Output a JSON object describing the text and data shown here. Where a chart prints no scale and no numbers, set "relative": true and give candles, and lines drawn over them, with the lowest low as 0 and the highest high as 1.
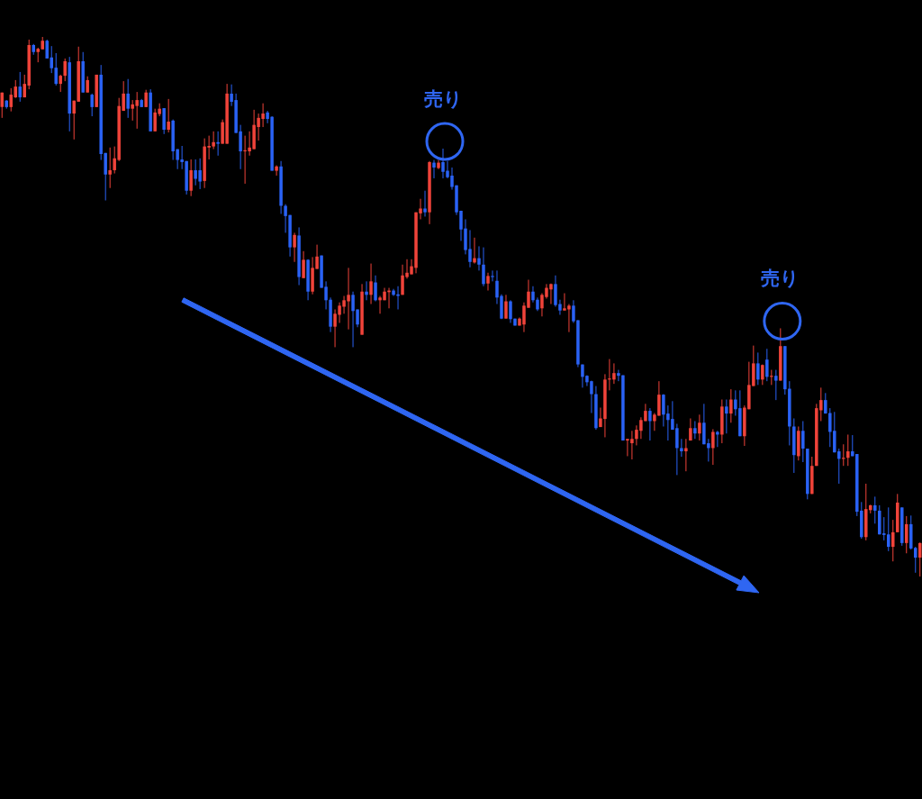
{
  "chart_data": {
    "type": "candlestick",
    "relative": true,
    "categories": [
      null,
      null,
      null,
      null,
      null,
      null,
      null,
      null,
      null,
      null,
      null,
      null,
      null,
      null,
      null,
      null,
      null,
      null,
      null,
      null,
      null,
      null,
      null,
      null,
      null,
      null,
      null,
      null,
      null,
      null,
      null,
      null,
      null,
      null,
      null,
      null,
      null,
      null,
      null,
      null,
      null,
      null,
      null,
      null,
      null,
      null,
      null,
      null,
      null,
      null,
      null,
      null,
      null,
      null,
      null,
      null,
      null,
      null,
      null,
      null,
      null,
      null,
      null,
      null,
      null,
      null,
      null,
      null,
      null,
      null,
      null,
      null,
      null,
      null,
      null,
      null,
      null,
      null,
      null,
      null,
      null,
      null,
      null,
      null,
      null,
      null,
      null,
      null,
      null,
      null,
      null,
      null,
      null,
      null,
      null,
      null,
      null,
      null,
      null,
      null,
      null,
      null,
      null,
      null,
      null,
      null,
      null,
      null,
      null,
      null,
      null,
      null,
      null,
      null,
      null,
      null,
      null,
      null,
      null,
      null,
      null,
      null,
      null,
      null,
      null,
      null,
      null,
      null,
      null,
      null,
      null,
      null,
      null,
      null,
      null,
      null,
      null,
      null,
      null,
      null,
      null,
      null,
      null,
      null,
      null,
      null,
      null,
      null,
      null,
      null,
      null,
      null,
      null,
      null,
      null,
      null,
      null,
      null,
      null,
      null,
      null,
      null,
      null,
      null,
      null,
      null,
      null,
      null,
      null,
      null,
      null,
      null,
      null,
      null,
      null,
      null,
      null,
      null,
      null,
      null,
      null,
      null,
      null,
      null,
      null,
      null,
      null,
      null,
      null,
      null,
      null,
      null,
      null,
      null,
      null,
      null,
      null,
      null,
      null,
      null,
      null,
      null,
      null,
      null,
      null
    ],
    "ohlc": [
      [
        0.87,
        0.897,
        0.85,
        0.897
      ],
      [
        0.882,
        0.883,
        0.867,
        0.87
      ],
      [
        0.87,
        0.905,
        0.862,
        0.893
      ],
      [
        0.888,
        0.92,
        0.887,
        0.908
      ],
      [
        0.908,
        0.935,
        0.88,
        0.888
      ],
      [
        0.888,
        0.93,
        0.888,
        0.913
      ],
      [
        0.91,
        0.995,
        0.903,
        0.985
      ],
      [
        0.985,
        0.987,
        0.967,
        0.972
      ],
      [
        0.972,
        0.98,
        0.953,
        0.978
      ],
      [
        0.977,
        1,
        0.977,
        0.993
      ],
      [
        0.993,
        0.995,
        0.96,
        0.96
      ],
      [
        0.962,
        0.983,
        0.933,
        0.942
      ],
      [
        0.943,
        0.97,
        0.91,
        0.913
      ],
      [
        0.913,
        0.93,
        0.898,
        0.928
      ],
      [
        0.928,
        0.96,
        0.918,
        0.955
      ],
      [
        0.953,
        0.963,
        0.825,
        0.858
      ],
      [
        0.858,
        0.882,
        0.81,
        0.882
      ],
      [
        0.88,
        0.982,
        0.88,
        0.955
      ],
      [
        0.955,
        0.972,
        0.897,
        0.897
      ],
      [
        0.897,
        0.927,
        0.897,
        0.92
      ],
      [
        0.893,
        0.895,
        0.853,
        0.87
      ],
      [
        0.87,
        0.93,
        0.87,
        0.93
      ],
      [
        0.93,
        0.948,
        0.772,
        0.783
      ],
      [
        0.785,
        0.785,
        0.697,
        0.745
      ],
      [
        0.745,
        0.795,
        0.72,
        0.753
      ],
      [
        0.753,
        0.797,
        0.747,
        0.775
      ],
      [
        0.772,
        0.887,
        0.77,
        0.872
      ],
      [
        0.863,
        0.918,
        0.863,
        0.895
      ],
      [
        0.895,
        0.922,
        0.85,
        0.867
      ],
      [
        0.867,
        0.883,
        0.845,
        0.875
      ],
      [
        0.872,
        0.898,
        0.83,
        0.883
      ],
      [
        0.883,
        0.885,
        0.87,
        0.87
      ],
      [
        0.87,
        0.902,
        0.87,
        0.897
      ],
      [
        0.897,
        0.903,
        0.825,
        0.825
      ],
      [
        0.825,
        0.867,
        0.825,
        0.86
      ],
      [
        0.857,
        0.877,
        0.853,
        0.867
      ],
      [
        0.868,
        0.868,
        0.82,
        0.828
      ],
      [
        0.828,
        0.885,
        0.823,
        0.843
      ],
      [
        0.845,
        0.847,
        0.772,
        0.788
      ],
      [
        0.792,
        0.792,
        0.755,
        0.772
      ],
      [
        0.773,
        0.798,
        0.755,
        0.768
      ],
      [
        0.77,
        0.77,
        0.708,
        0.715
      ],
      [
        0.715,
        0.773,
        0.705,
        0.753
      ],
      [
        0.753,
        0.773,
        0.725,
        0.737
      ],
      [
        0.753,
        0.775,
        0.718,
        0.732
      ],
      [
        0.733,
        0.812,
        0.72,
        0.797
      ],
      [
        0.795,
        0.817,
        0.773,
        0.798
      ],
      [
        0.797,
        0.825,
        0.792,
        0.805
      ],
      [
        0.805,
        0.825,
        0.78,
        0.802
      ],
      [
        0.802,
        0.847,
        0.802,
        0.842
      ],
      [
        0.802,
        0.913,
        0.802,
        0.895
      ],
      [
        0.895,
        0.912,
        0.872,
        0.88
      ],
      [
        0.883,
        0.895,
        0.822,
        0.822
      ],
      [
        0.825,
        0.837,
        0.755,
        0.788
      ],
      [
        0.788,
        0.817,
        0.728,
        0.79
      ],
      [
        0.788,
        0.825,
        0.78,
        0.795
      ],
      [
        0.792,
        0.865,
        0.792,
        0.837
      ],
      [
        0.833,
        0.858,
        0.808,
        0.85
      ],
      [
        0.848,
        0.877,
        0.833,
        0.858
      ],
      [
        0.86,
        0.863,
        0.84,
        0.848
      ],
      [
        0.852,
        0.853,
        0.752,
        0.752
      ],
      [
        0.752,
        0.762,
        0.743,
        0.76
      ],
      [
        0.76,
        0.77,
        0.672,
        0.687
      ],
      [
        0.687,
        0.69,
        0.637,
        0.668
      ],
      [
        0.67,
        0.67,
        0.593,
        0.61
      ],
      [
        0.61,
        0.637,
        0.583,
        0.633
      ],
      [
        0.632,
        0.647,
        0.54,
        0.555
      ],
      [
        0.553,
        0.603,
        0.553,
        0.587
      ],
      [
        0.587,
        0.588,
        0.512,
        0.528
      ],
      [
        0.528,
        0.592,
        0.523,
        0.572
      ],
      [
        0.57,
        0.615,
        0.57,
        0.593
      ],
      [
        0.595,
        0.595,
        0.535,
        0.535
      ],
      [
        0.537,
        0.547,
        0.495,
        0.512
      ],
      [
        0.513,
        0.517,
        0.453,
        0.463
      ],
      [
        0.463,
        0.495,
        0.425,
        0.487
      ],
      [
        0.485,
        0.508,
        0.47,
        0.502
      ],
      [
        0.5,
        0.52,
        0.487,
        0.512
      ],
      [
        0.51,
        0.572,
        0.458,
        0.522
      ],
      [
        0.522,
        0.528,
        0.425,
        0.492
      ],
      [
        0.495,
        0.495,
        0.462,
        0.467
      ],
      [
        0.448,
        0.542,
        0.448,
        0.528
      ],
      [
        0.528,
        0.547,
        0.512,
        0.522
      ],
      [
        0.522,
        0.58,
        0.505,
        0.547
      ],
      [
        0.545,
        0.558,
        0.51,
        0.512
      ],
      [
        0.512,
        0.52,
        0.487,
        0.517
      ],
      [
        0.512,
        0.535,
        0.512,
        0.528
      ],
      [
        0.527,
        0.535,
        0.497,
        0.53
      ],
      [
        0.53,
        0.533,
        0.52,
        0.522
      ],
      [
        0.523,
        0.538,
        0.495,
        0.52
      ],
      [
        0.522,
        0.578,
        0.522,
        0.558
      ],
      [
        0.555,
        0.588,
        0.552,
        0.563
      ],
      [
        0.56,
        0.588,
        0.56,
        0.575
      ],
      [
        0.572,
        0.675,
        0.562,
        0.675
      ],
      [
        0.673,
        0.7,
        0.662,
        0.682
      ],
      [
        0.682,
        0.715,
        0.667,
        0.675
      ],
      [
        0.675,
        0.77,
        0.653,
        0.768
      ],
      [
        0.767,
        0.772,
        0.738,
        0.758
      ],
      [
        0.757,
        0.772,
        0.755,
        0.767
      ],
      [
        0.768,
        0.793,
        0.738,
        0.75
      ],
      [
        0.752,
        0.77,
        0.738,
        0.74
      ],
      [
        0.743,
        0.758,
        0.717,
        0.722
      ],
      [
        0.725,
        0.725,
        0.67,
        0.675
      ],
      [
        0.678,
        0.678,
        0.622,
        0.643
      ],
      [
        0.645,
        0.662,
        0.597,
        0.605
      ],
      [
        0.607,
        0.642,
        0.573,
        0.583
      ],
      [
        0.582,
        0.628,
        0.58,
        0.59
      ],
      [
        0.59,
        0.612,
        0.567,
        0.578
      ],
      [
        0.578,
        0.61,
        0.538,
        0.542
      ],
      [
        0.543,
        0.563,
        0.53,
        0.557
      ],
      [
        0.557,
        0.567,
        0.547,
        0.555
      ],
      [
        0.548,
        0.567,
        0.505,
        0.517
      ],
      [
        0.52,
        0.523,
        0.477,
        0.478
      ],
      [
        0.478,
        0.522,
        0.478,
        0.51
      ],
      [
        0.51,
        0.512,
        0.47,
        0.477
      ],
      [
        0.478,
        0.478,
        0.465,
        0.465
      ],
      [
        0.465,
        0.48,
        0.465,
        0.478
      ],
      [
        0.467,
        0.508,
        0.453,
        0.502
      ],
      [
        0.498,
        0.55,
        0.498,
        0.528
      ],
      [
        0.528,
        0.538,
        0.508,
        0.512
      ],
      [
        0.513,
        0.517,
        0.492,
        0.495
      ],
      [
        0.497,
        0.525,
        0.482,
        0.522
      ],
      [
        0.518,
        0.542,
        0.515,
        0.535
      ],
      [
        0.532,
        0.543,
        0.505,
        0.542
      ],
      [
        0.542,
        0.558,
        0.5,
        0.503
      ],
      [
        0.505,
        0.513,
        0.485,
        0.493
      ],
      [
        0.493,
        0.525,
        0.493,
        0.497
      ],
      [
        0.495,
        0.505,
        0.453,
        0.502
      ],
      [
        0.502,
        0.512,
        0.47,
        0.473
      ],
      [
        0.475,
        0.475,
        0.388,
        0.393
      ],
      [
        0.393,
        0.393,
        0.35,
        0.37
      ],
      [
        0.372,
        0.373,
        0.353,
        0.36
      ],
      [
        0.362,
        0.363,
        0.303,
        0.338
      ],
      [
        0.338,
        0.353,
        0.272,
        0.275
      ],
      [
        0.277,
        0.313,
        0.277,
        0.293
      ],
      [
        0.292,
        0.375,
        0.258,
        0.365
      ],
      [
        0.365,
        0.403,
        0.345,
        0.367
      ],
      [
        0.365,
        0.395,
        0.357,
        0.377
      ],
      [
        0.377,
        0.383,
        0.362,
        0.372
      ],
      [
        0.373,
        0.373,
        0.252,
        0.252
      ],
      [
        0.252,
        0.255,
        0.223,
        0.255
      ],
      [
        0.247,
        0.27,
        0.217,
        0.255
      ],
      [
        0.255,
        0.28,
        0.243,
        0.272
      ],
      [
        0.27,
        0.295,
        0.255,
        0.29
      ],
      [
        0.288,
        0.32,
        0.288,
        0.307
      ],
      [
        0.307,
        0.312,
        0.252,
        0.288
      ],
      [
        0.288,
        0.303,
        0.27,
        0.3
      ],
      [
        0.298,
        0.362,
        0.298,
        0.337
      ],
      [
        0.337,
        0.338,
        0.278,
        0.3
      ],
      [
        0.302,
        0.317,
        0.252,
        0.29
      ],
      [
        0.292,
        0.325,
        0.272,
        0.272
      ],
      [
        0.275,
        0.283,
        0.188,
        0.238
      ],
      [
        0.238,
        0.255,
        0.222,
        0.232
      ],
      [
        0.232,
        0.255,
        0.195,
        0.238
      ],
      [
        0.252,
        0.293,
        0.252,
        0.275
      ],
      [
        0.275,
        0.288,
        0.255,
        0.265
      ],
      [
        0.265,
        0.3,
        0.252,
        0.285
      ],
      [
        0.285,
        0.32,
        0.245,
        0.245
      ],
      [
        0.247,
        0.255,
        0.213,
        0.238
      ],
      [
        0.238,
        0.273,
        0.207,
        0.268
      ],
      [
        0.268,
        0.27,
        0.24,
        0.263
      ],
      [
        0.263,
        0.328,
        0.247,
        0.315
      ],
      [
        0.315,
        0.328,
        0.265,
        0.302
      ],
      [
        0.302,
        0.347,
        0.285,
        0.328
      ],
      [
        0.328,
        0.345,
        0.298,
        0.31
      ],
      [
        0.312,
        0.345,
        0.26,
        0.26
      ],
      [
        0.26,
        0.317,
        0.242,
        0.313
      ],
      [
        0.31,
        0.398,
        0.31,
        0.355
      ],
      [
        0.353,
        0.428,
        0.353,
        0.395
      ],
      [
        0.395,
        0.415,
        0.355,
        0.365
      ],
      [
        0.365,
        0.393,
        0.355,
        0.392
      ],
      [
        0.402,
        0.422,
        0.362,
        0.37
      ],
      [
        0.37,
        0.383,
        0.355,
        0.372
      ],
      [
        0.372,
        0.383,
        0.327,
        0.363
      ],
      [
        0.363,
        0.46,
        0.363,
        0.427
      ],
      [
        0.427,
        0.427,
        0.337,
        0.347
      ],
      [
        0.348,
        0.362,
        0.243,
        0.278
      ],
      [
        0.278,
        0.293,
        0.192,
        0.225
      ],
      [
        0.223,
        0.278,
        0.215,
        0.27
      ],
      [
        0.27,
        0.288,
        0.212,
        0.237
      ],
      [
        0.237,
        0.237,
        0.143,
        0.153
      ],
      [
        0.153,
        0.222,
        0.153,
        0.205
      ],
      [
        0.205,
        0.32,
        0.205,
        0.312
      ],
      [
        0.308,
        0.35,
        0.288,
        0.327
      ],
      [
        0.327,
        0.34,
        0.302,
        0.302
      ],
      [
        0.303,
        0.312,
        0.24,
        0.268
      ],
      [
        0.27,
        0.305,
        0.23,
        0.23
      ],
      [
        0.232,
        0.237,
        0.172,
        0.218
      ],
      [
        0.218,
        0.245,
        0.205,
        0.22
      ],
      [
        0.22,
        0.263,
        0.205,
        0.232
      ],
      [
        0.232,
        0.262,
        0.223,
        0.223
      ],
      [
        0.227,
        0.227,
        0.112,
        0.12
      ],
      [
        0.122,
        0.138,
        0.07,
        0.073
      ],
      [
        0.073,
        0.172,
        0.067,
        0.125
      ],
      [
        0.123,
        0.133,
        0.117,
        0.132
      ],
      [
        0.132,
        0.148,
        0.098,
        0.122
      ],
      [
        0.122,
        0.132,
        0.078,
        0.078
      ],
      [
        0.08,
        0.11,
        0.067,
        0.077
      ],
      [
        0.078,
        0.128,
        0.047,
        0.055
      ],
      [
        0.055,
        0.105,
        0.028,
        0.082
      ],
      [
        0.082,
        0.153,
        0.082,
        0.137
      ],
      [
        0.128,
        0.128,
        0.057,
        0.062
      ],
      [
        0.062,
        0.112,
        0.043,
        0.097
      ],
      [
        0.097,
        0.113,
        0.05,
        0.052
      ],
      [
        0.053,
        0.055,
        0.007,
        0.035
      ],
      [
        0.035,
        0.063,
        0,
        0.062
      ]
    ],
    "colors": [
      "#f0433a",
      "#2a62f5",
      "#f0433a",
      "#f0433a",
      "#2a62f5",
      "#f0433a",
      "#f0433a",
      "#2a62f5",
      "#f0433a",
      "#f0433a",
      "#2a62f5",
      "#2a62f5",
      "#2a62f5",
      "#f0433a",
      "#f0433a",
      "#2a62f5",
      "#f0433a",
      "#f0433a",
      "#2a62f5",
      "#f0433a",
      "#2a62f5",
      "#f0433a",
      "#2a62f5",
      "#2a62f5",
      "#f0433a",
      "#f0433a",
      "#f0433a",
      "#f0433a",
      "#2a62f5",
      "#f0433a",
      "#f0433a",
      "#2a62f5",
      "#f0433a",
      "#2a62f5",
      "#f0433a",
      "#f0433a",
      "#2a62f5",
      "#f0433a",
      "#2a62f5",
      "#2a62f5",
      "#2a62f5",
      "#2a62f5",
      "#f0433a",
      "#2a62f5",
      "#2a62f5",
      "#f0433a",
      "#f0433a",
      "#f0433a",
      "#2a62f5",
      "#f0433a",
      "#f0433a",
      "#2a62f5",
      "#2a62f5",
      "#2a62f5",
      "#f0433a",
      "#f0433a",
      "#f0433a",
      "#f0433a",
      "#f0433a",
      "#2a62f5",
      "#2a62f5",
      "#f0433a",
      "#2a62f5",
      "#2a62f5",
      "#2a62f5",
      "#f0433a",
      "#2a62f5",
      "#f0433a",
      "#2a62f5",
      "#f0433a",
      "#f0433a",
      "#2a62f5",
      "#2a62f5",
      "#2a62f5",
      "#f0433a",
      "#f0433a",
      "#f0433a",
      "#f0433a",
      "#2a62f5",
      "#2a62f5",
      "#f0433a",
      "#2a62f5",
      "#f0433a",
      "#2a62f5",
      "#f0433a",
      "#f0433a",
      "#f0433a",
      "#2a62f5",
      "#2a62f5",
      "#f0433a",
      "#f0433a",
      "#f0433a",
      "#f0433a",
      "#f0433a",
      "#2a62f5",
      "#f0433a",
      "#2a62f5",
      "#f0433a",
      "#2a62f5",
      "#2a62f5",
      "#2a62f5",
      "#2a62f5",
      "#2a62f5",
      "#2a62f5",
      "#2a62f5",
      "#f0433a",
      "#2a62f5",
      "#2a62f5",
      "#f0433a",
      "#2a62f5",
      "#2a62f5",
      "#2a62f5",
      "#f0433a",
      "#2a62f5",
      "#2a62f5",
      "#f0433a",
      "#f0433a",
      "#f0433a",
      "#2a62f5",
      "#2a62f5",
      "#f0433a",
      "#f0433a",
      "#f0433a",
      "#2a62f5",
      "#2a62f5",
      "#f0433a",
      "#f0433a",
      "#2a62f5",
      "#2a62f5",
      "#2a62f5",
      "#2a62f5",
      "#2a62f5",
      "#2a62f5",
      "#f0433a",
      "#f0433a",
      "#f0433a",
      "#f0433a",
      "#2a62f5",
      "#2a62f5",
      "#f0433a",
      "#f0433a",
      "#f0433a",
      "#f0433a",
      "#f0433a",
      "#2a62f5",
      "#f0433a",
      "#f0433a",
      "#2a62f5",
      "#2a62f5",
      "#2a62f5",
      "#2a62f5",
      "#2a62f5",
      "#f0433a",
      "#f0433a",
      "#2a62f5",
      "#f0433a",
      "#2a62f5",
      "#2a62f5",
      "#f0433a",
      "#2a62f5",
      "#f0433a",
      "#2a62f5",
      "#f0433a",
      "#2a62f5",
      "#2a62f5",
      "#f0433a",
      "#f0433a",
      "#f0433a",
      "#2a62f5",
      "#f0433a",
      "#2a62f5",
      "#f0433a",
      "#2a62f5",
      "#f0433a",
      "#2a62f5",
      "#2a62f5",
      "#2a62f5",
      "#f0433a",
      "#2a62f5",
      "#2a62f5",
      "#f0433a",
      "#f0433a",
      "#f0433a",
      "#2a62f5",
      "#2a62f5",
      "#2a62f5",
      "#2a62f5",
      "#f0433a",
      "#f0433a",
      "#2a62f5",
      "#2a62f5",
      "#2a62f5",
      "#f0433a",
      "#f0433a",
      "#2a62f5",
      "#2a62f5",
      "#2a62f5",
      "#2a62f5",
      "#f0433a",
      "#f0433a",
      "#2a62f5",
      "#f0433a",
      "#2a62f5",
      "#2a62f5",
      "#f0433a"
    ],
    "annotations": [
      {
        "text": "売り",
        "y": 0.793
      },
      {
        "text": "売り",
        "y": 0.46
      }
    ]
  }
}
